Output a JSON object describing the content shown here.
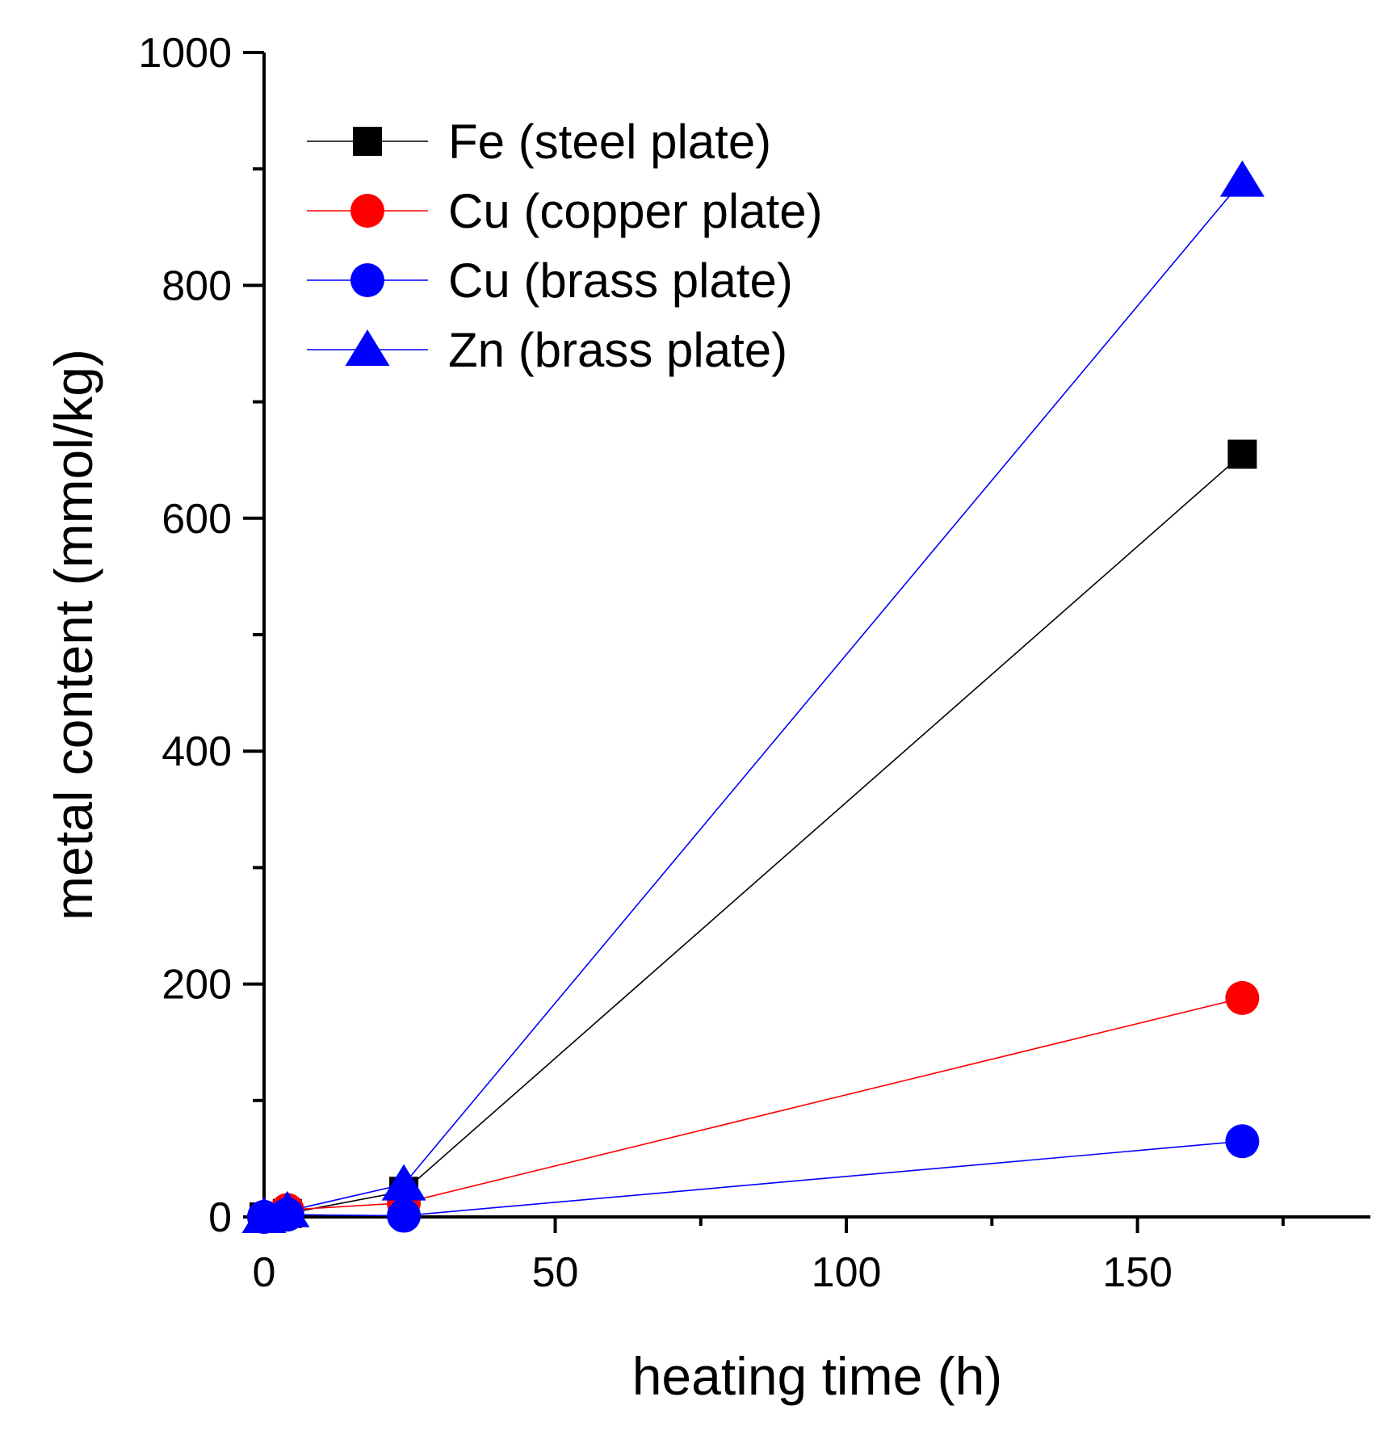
{
  "chart_data": {
    "type": "line",
    "title": "",
    "xlabel": "heating time (h)",
    "ylabel": "metal content (mmol/kg)",
    "xlim": [
      0,
      190
    ],
    "ylim": [
      0,
      1000
    ],
    "x_ticks": [
      "0",
      "50",
      "100",
      "150"
    ],
    "y_ticks": [
      "0",
      "200",
      "400",
      "600",
      "800",
      "1000"
    ],
    "grid": false,
    "legend_position": "top-left",
    "series": [
      {
        "name": "Fe (steel plate)",
        "color": "#000000",
        "marker": "square",
        "x": [
          0,
          4,
          24,
          168
        ],
        "y": [
          0,
          3,
          22,
          655
        ]
      },
      {
        "name": "Cu (copper plate)",
        "color": "#ff0000",
        "marker": "circle",
        "x": [
          0,
          4,
          24,
          168
        ],
        "y": [
          0,
          6,
          12,
          188
        ]
      },
      {
        "name": "Cu (brass plate)",
        "color": "#0000ff",
        "marker": "circle",
        "x": [
          0,
          4,
          24,
          168
        ],
        "y": [
          0,
          2,
          1,
          65
        ]
      },
      {
        "name": "Zn (brass plate)",
        "color": "#0000ff",
        "marker": "triangle",
        "x": [
          0,
          4,
          24,
          168
        ],
        "y": [
          0,
          5,
          28,
          890
        ]
      }
    ]
  }
}
